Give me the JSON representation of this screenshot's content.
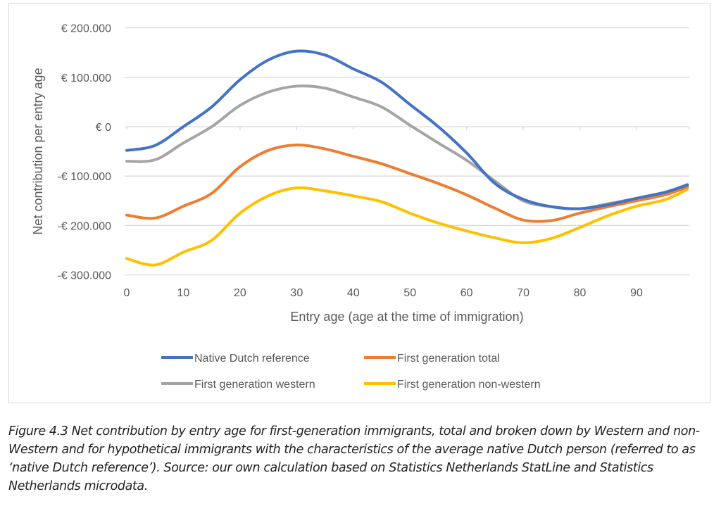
{
  "chart_data": {
    "type": "line",
    "xlabel": "Entry age (age at the time of immigration)",
    "ylabel": "Net contribution per entry age",
    "xlim": [
      0,
      99
    ],
    "ylim": [
      -300000,
      200000
    ],
    "xticks": [
      0,
      10,
      20,
      30,
      40,
      50,
      60,
      70,
      80,
      90
    ],
    "yticks": [
      {
        "v": 200000,
        "label": "€ 200.000"
      },
      {
        "v": 100000,
        "label": "€ 100.000"
      },
      {
        "v": 0,
        "label": "€ 0"
      },
      {
        "v": -100000,
        "label": "-€ 100.000"
      },
      {
        "v": -200000,
        "label": "-€ 200.000"
      },
      {
        "v": -300000,
        "label": "-€ 300.000"
      }
    ],
    "grid": true,
    "legend_position": "bottom",
    "x": [
      0,
      5,
      10,
      15,
      20,
      25,
      30,
      35,
      40,
      45,
      50,
      55,
      60,
      65,
      70,
      75,
      80,
      85,
      90,
      95,
      99
    ],
    "series": [
      {
        "name": "Native Dutch reference",
        "color": "#4472C4",
        "values": [
          -48000,
          -38000,
          0,
          40000,
          95000,
          135000,
          153000,
          145000,
          117000,
          90000,
          45000,
          0,
          -53000,
          -115000,
          -147000,
          -162000,
          -166000,
          -158000,
          -145000,
          -133000,
          -118000
        ]
      },
      {
        "name": "First generation total",
        "color": "#ED7D31",
        "values": [
          -179000,
          -185000,
          -161000,
          -135000,
          -81000,
          -48000,
          -37000,
          -45000,
          -60000,
          -75000,
          -95000,
          -115000,
          -138000,
          -165000,
          -189000,
          -190000,
          -175000,
          -162000,
          -150000,
          -138000,
          -122000
        ]
      },
      {
        "name": "First generation western",
        "color": "#A5A5A5",
        "values": [
          -70000,
          -67000,
          -33000,
          0,
          43000,
          70000,
          82000,
          78000,
          60000,
          40000,
          3000,
          -33000,
          -68000,
          -110000,
          -150000,
          -162000,
          -166000,
          -156000,
          -145000,
          -133000,
          -117000
        ]
      },
      {
        "name": "First generation non-western",
        "color": "#FFC000",
        "values": [
          -267000,
          -280000,
          -254000,
          -230000,
          -175000,
          -140000,
          -124000,
          -130000,
          -140000,
          -152000,
          -175000,
          -195000,
          -211000,
          -225000,
          -235000,
          -226000,
          -204000,
          -180000,
          -161000,
          -148000,
          -127000
        ]
      }
    ]
  },
  "caption": "Figure 4.3 Net contribution by entry age for first-generation immigrants, total and broken down by Western and non-Western and for hypothetical immigrants with the characteristics of the average native Dutch person (referred to as ‘native Dutch reference’). Source: our own calculation based on Statistics Netherlands StatLine and Statistics Netherlands microdata."
}
